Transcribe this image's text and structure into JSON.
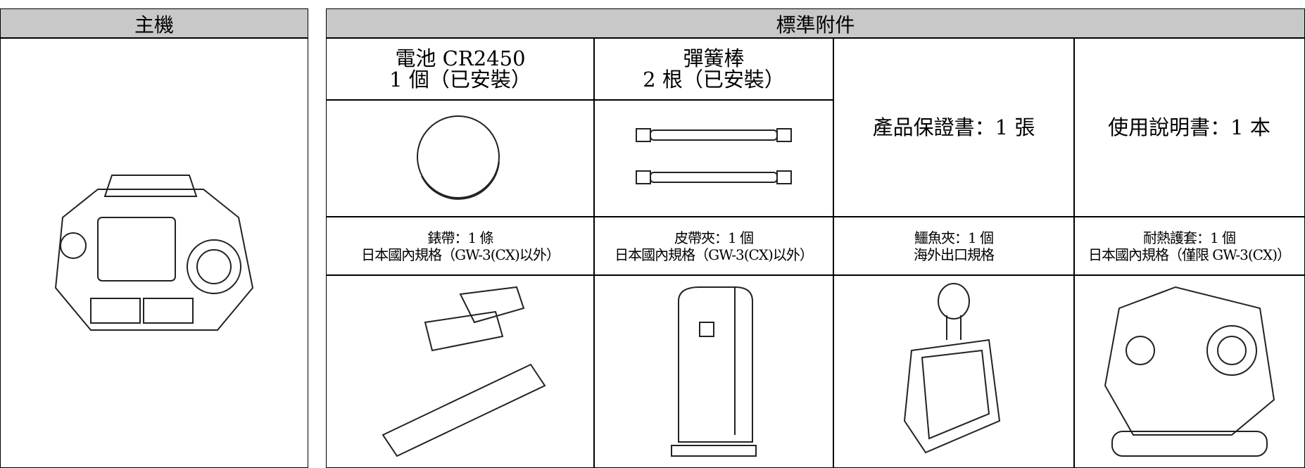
{
  "main_unit": {
    "header": "主機"
  },
  "accessories": {
    "header": "標準附件",
    "items": [
      {
        "name": "電池 CR2450",
        "note": "1 個（已安裝）"
      },
      {
        "name": "彈簧棒",
        "note": "2 根（已安裝）"
      },
      {
        "name": "產品保證書：1 張"
      },
      {
        "name": "使用說明書：1 本"
      },
      {
        "name": "錶帶：1 條",
        "note": "日本國內規格（GW-3(CX)以外）"
      },
      {
        "name": "皮帶夾：1 個",
        "note": "日本國內規格（GW-3(CX)以外）"
      },
      {
        "name": "鱷魚夾：1 個",
        "note": "海外出口規格"
      },
      {
        "name": "耐熱護套：1 個",
        "note": "日本國內規格（僅限 GW-3(CX)）"
      }
    ]
  }
}
